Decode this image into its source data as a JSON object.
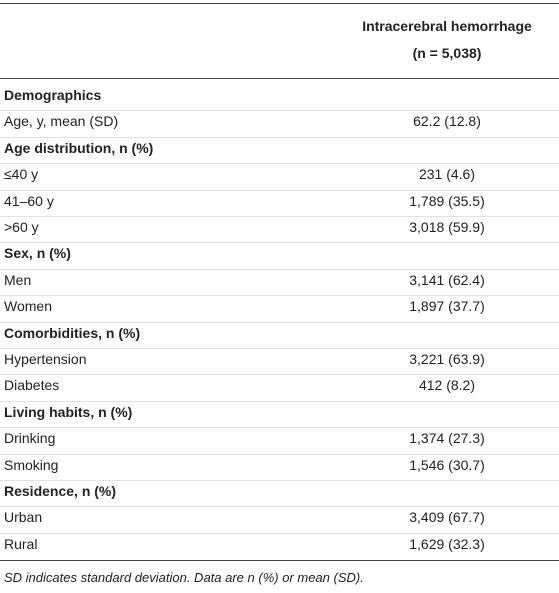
{
  "table": {
    "header": [
      "Intracerebral hemorrhage",
      "(n = 5,038)"
    ],
    "rows": [
      {
        "section": "Demographics"
      },
      {
        "label": "Age, y, mean (SD)",
        "value": "62.2 (12.8)"
      },
      {
        "section": "Age distribution, n (%)"
      },
      {
        "label": "≤40 y",
        "value": "231 (4.6)"
      },
      {
        "label": "41–60 y",
        "value": "1,789 (35.5)"
      },
      {
        "label": ">60 y",
        "value": "3,018 (59.9)"
      },
      {
        "section": "Sex, n (%)"
      },
      {
        "label": "Men",
        "value": "3,141 (62.4)"
      },
      {
        "label": "Women",
        "value": "1,897 (37.7)"
      },
      {
        "section": "Comorbidities, n (%)"
      },
      {
        "label": "Hypertension",
        "value": "3,221 (63.9)"
      },
      {
        "label": "Diabetes",
        "value": "412 (8.2)"
      },
      {
        "section": "Living habits, n (%)"
      },
      {
        "label": "Drinking",
        "value": "1,374 (27.3)"
      },
      {
        "label": "Smoking",
        "value": "1,546 (30.7)"
      },
      {
        "section": "Residence, n (%)"
      },
      {
        "label": "Urban",
        "value": "3,409 (67.7)"
      },
      {
        "label": "Rural",
        "value": "1,629 (32.3)"
      }
    ]
  },
  "footnote": "SD indicates standard deviation. Data are n (%) or mean (SD)."
}
